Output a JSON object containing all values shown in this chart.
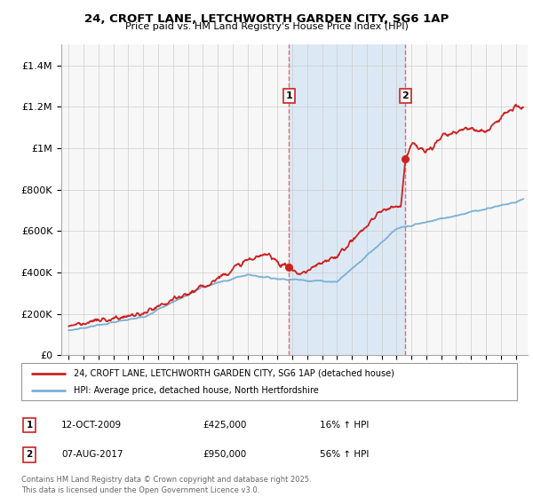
{
  "title": "24, CROFT LANE, LETCHWORTH GARDEN CITY, SG6 1AP",
  "subtitle": "Price paid vs. HM Land Registry's House Price Index (HPI)",
  "legend_line1": "24, CROFT LANE, LETCHWORTH GARDEN CITY, SG6 1AP (detached house)",
  "legend_line2": "HPI: Average price, detached house, North Hertfordshire",
  "footer": "Contains HM Land Registry data © Crown copyright and database right 2025.\nThis data is licensed under the Open Government Licence v3.0.",
  "transaction1_date": "12-OCT-2009",
  "transaction1_price": "£425,000",
  "transaction1_hpi": "16% ↑ HPI",
  "transaction1_year": 2009.78,
  "transaction1_value": 425000,
  "transaction2_date": "07-AUG-2017",
  "transaction2_price": "£950,000",
  "transaction2_hpi": "56% ↑ HPI",
  "transaction2_year": 2017.6,
  "transaction2_value": 950000,
  "red_color": "#cc2222",
  "blue_color": "#7ab0d4",
  "shade_color": "#dce9f5",
  "dashed_color": "#e06060",
  "ylim_max": 1500000,
  "yticks": [
    0,
    200000,
    400000,
    600000,
    800000,
    1000000,
    1200000,
    1400000
  ],
  "ytick_labels": [
    "£0",
    "£200K",
    "£400K",
    "£600K",
    "£800K",
    "£1M",
    "£1.2M",
    "£1.4M"
  ],
  "xstart": 1994.5,
  "xend": 2025.8,
  "bg_color": "#f7f7f7"
}
